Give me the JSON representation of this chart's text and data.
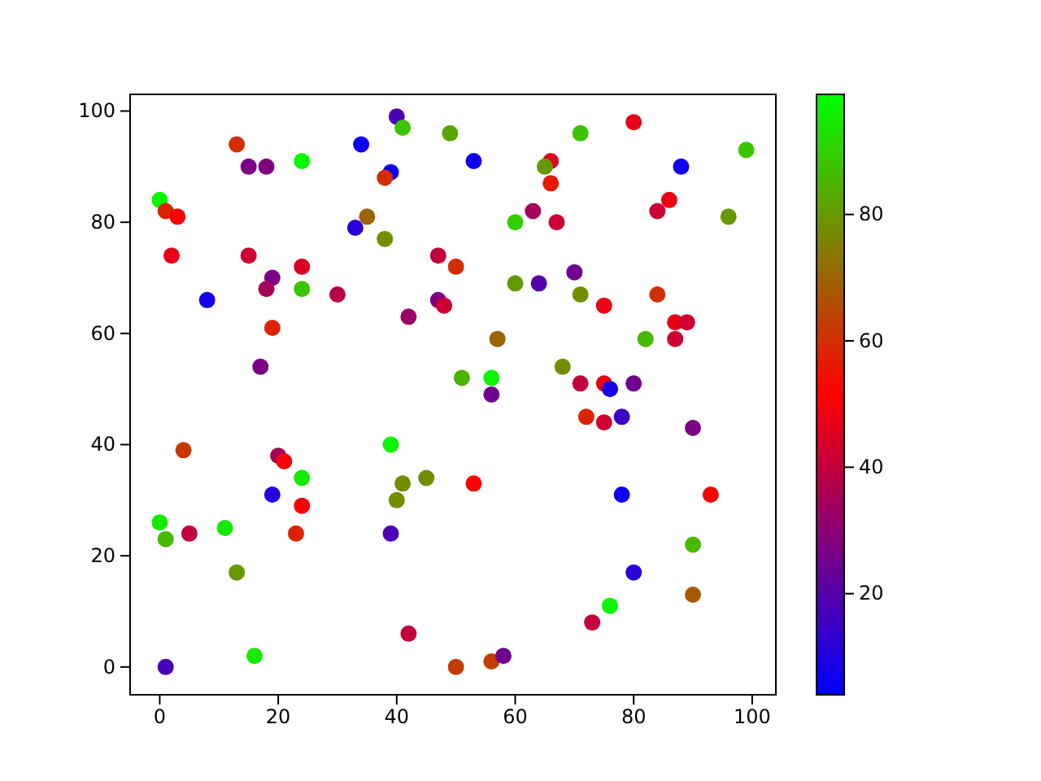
{
  "chart_data": {
    "type": "scatter",
    "marker": "circle",
    "grid": false,
    "xlim": [
      -5,
      104
    ],
    "ylim": [
      -5,
      103
    ],
    "xticks": [
      0,
      20,
      40,
      60,
      80,
      100
    ],
    "yticks": [
      0,
      20,
      40,
      60,
      80,
      100
    ],
    "clim": [
      4,
      99
    ],
    "cticks": [
      20,
      40,
      60,
      80
    ],
    "x": [
      0,
      1,
      3,
      13,
      15,
      18,
      24,
      34,
      39,
      38,
      40,
      41,
      49,
      53,
      66,
      65,
      71,
      80,
      88,
      99,
      66,
      63,
      67,
      60,
      84,
      86,
      96,
      2,
      8,
      15,
      19,
      18,
      24,
      24,
      30,
      33,
      35,
      38,
      47,
      47,
      48,
      50,
      42,
      17,
      19,
      60,
      64,
      70,
      71,
      75,
      84,
      87,
      89,
      87,
      82,
      57,
      51,
      56,
      56,
      68,
      71,
      75,
      76,
      80,
      72,
      75,
      78,
      90,
      4,
      20,
      21,
      24,
      19,
      24,
      23,
      0,
      1,
      5,
      11,
      13,
      16,
      1,
      39,
      41,
      40,
      45,
      39,
      42,
      50,
      53,
      56,
      58,
      78,
      93,
      90,
      80,
      90,
      76,
      73
    ],
    "values": [
      84,
      82,
      81,
      94,
      90,
      90,
      91,
      94,
      89,
      88,
      99,
      97,
      96,
      91,
      91,
      90,
      96,
      98,
      90,
      93,
      87,
      82,
      80,
      80,
      82,
      84,
      81,
      74,
      66,
      74,
      70,
      68,
      72,
      68,
      67,
      79,
      81,
      77,
      74,
      66,
      65,
      72,
      63,
      54,
      61,
      69,
      69,
      71,
      67,
      65,
      67,
      62,
      62,
      59,
      59,
      59,
      52,
      52,
      49,
      54,
      51,
      51,
      50,
      51,
      45,
      44,
      45,
      43,
      39,
      38,
      37,
      34,
      31,
      29,
      24,
      26,
      23,
      24,
      25,
      17,
      2,
      0,
      40,
      33,
      30,
      34,
      24,
      6,
      0,
      33,
      1,
      2,
      31,
      31,
      22,
      17,
      13,
      11,
      8
    ],
    "cvalues": [
      97,
      58,
      50,
      60,
      27,
      28,
      98,
      6,
      7,
      60,
      18,
      88,
      82,
      6,
      45,
      80,
      88,
      47,
      7,
      88,
      56,
      35,
      42,
      90,
      42,
      48,
      80,
      47,
      8,
      42,
      27,
      35,
      45,
      88,
      38,
      12,
      70,
      78,
      40,
      28,
      42,
      60,
      33,
      27,
      58,
      80,
      20,
      25,
      78,
      48,
      60,
      47,
      42,
      42,
      86,
      70,
      85,
      97,
      25,
      78,
      40,
      48,
      8,
      25,
      58,
      42,
      15,
      27,
      62,
      35,
      50,
      95,
      10,
      50,
      58,
      95,
      86,
      40,
      95,
      80,
      95,
      17,
      97,
      78,
      78,
      78,
      18,
      40,
      63,
      52,
      63,
      25,
      7,
      52,
      86,
      12,
      68,
      97,
      40
    ]
  }
}
